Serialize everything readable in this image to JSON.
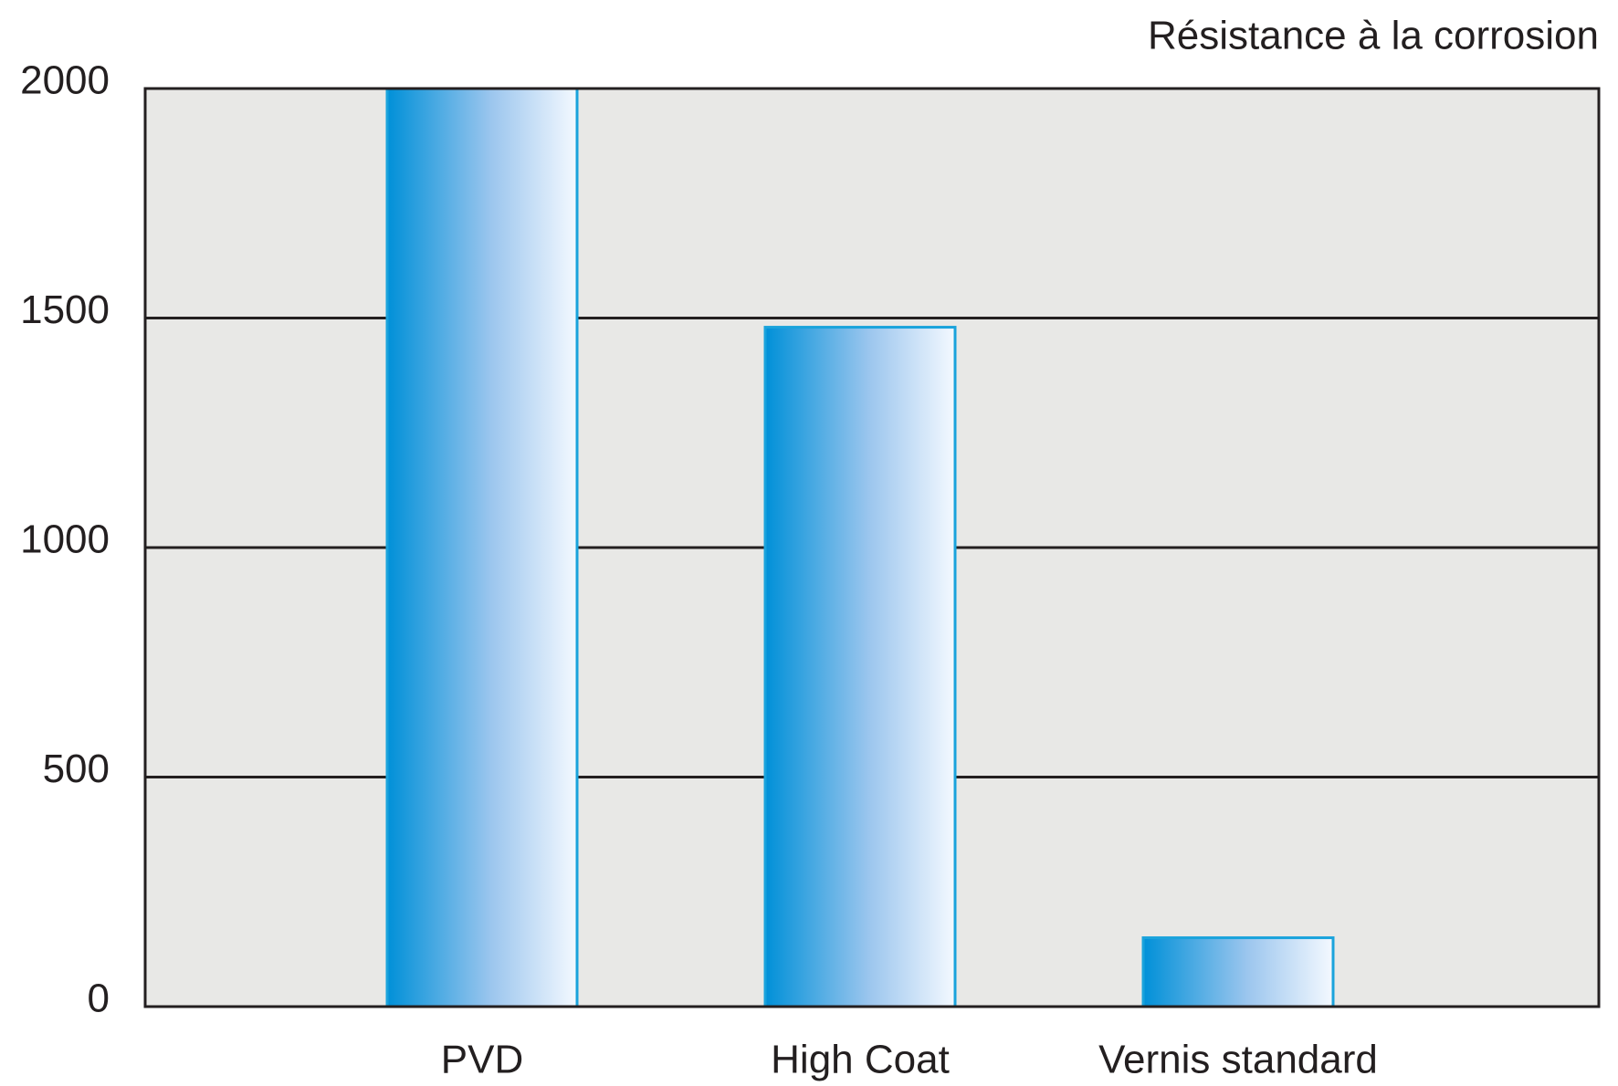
{
  "chart_data": {
    "type": "bar",
    "title": "Résistance à la corrosion",
    "categories": [
      "PVD",
      "High Coat",
      "Vernis standard"
    ],
    "values": [
      2000,
      1480,
      150
    ],
    "color": "#0090d8",
    "ylim": [
      0,
      2000
    ],
    "yticks": [
      0,
      500,
      1000,
      1500,
      2000
    ],
    "grid": true
  }
}
